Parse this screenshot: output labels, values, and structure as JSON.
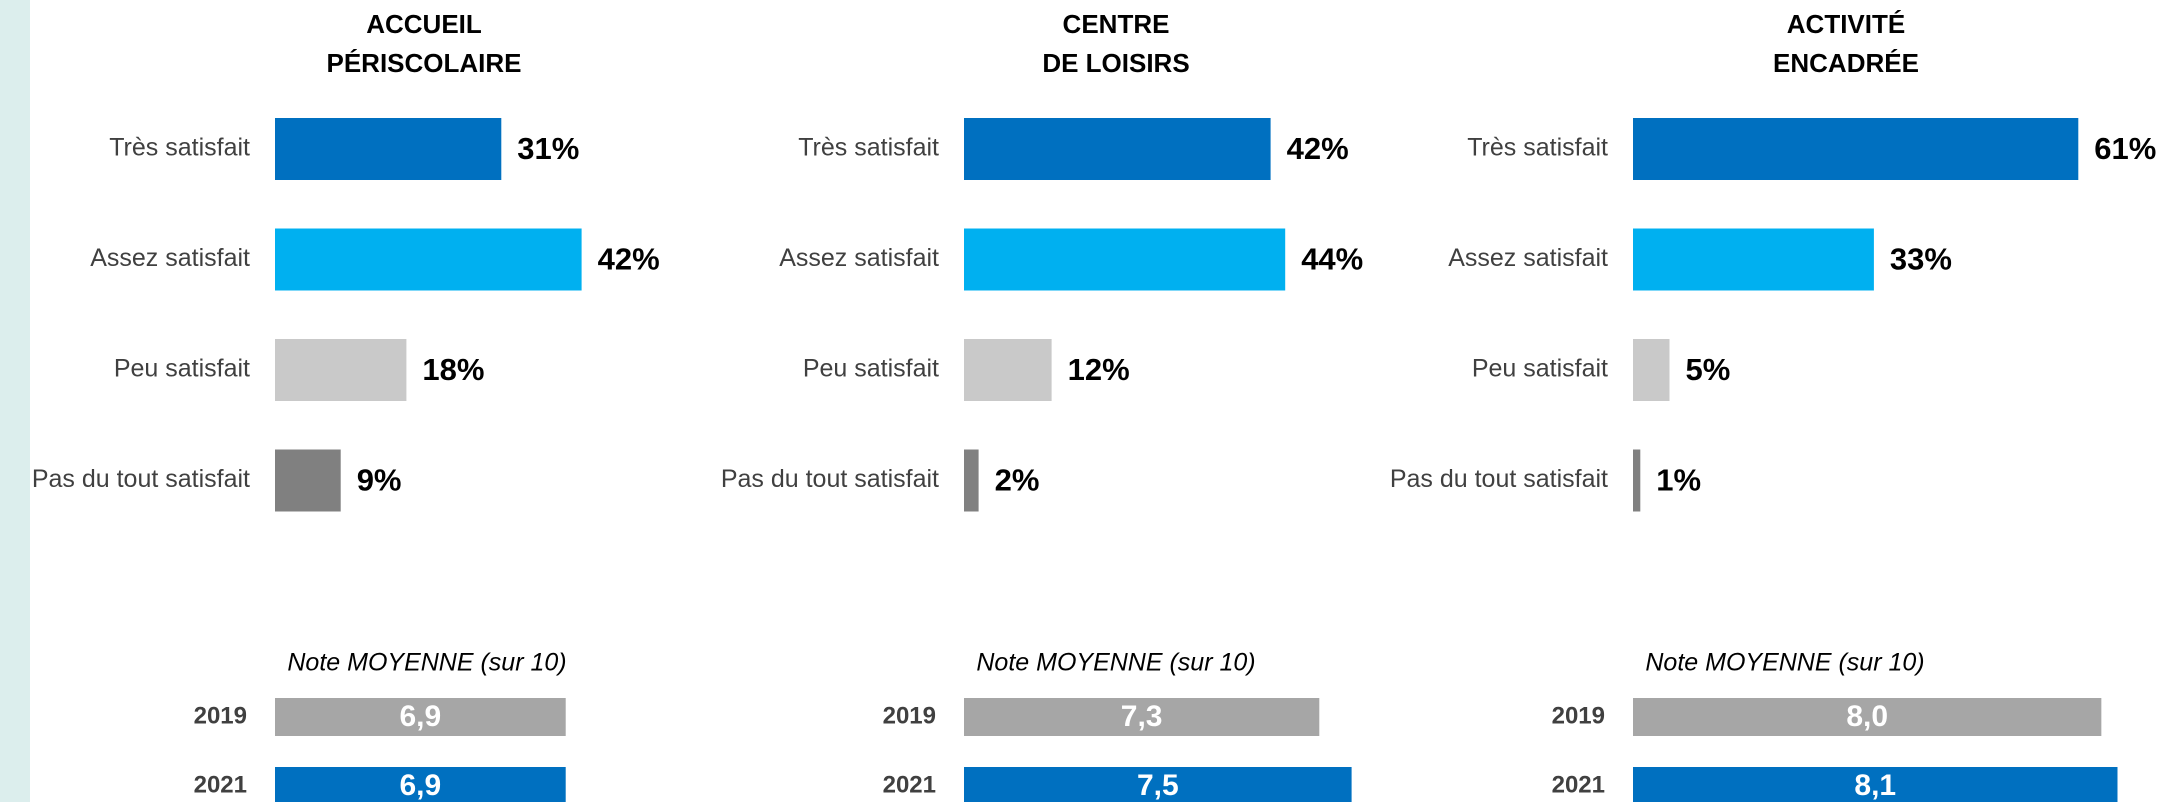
{
  "chart_data": [
    {
      "type": "hbar",
      "title": [
        "ACCUEIL",
        "PÉRISCOLAIRE"
      ],
      "categories": [
        "Très satisfait",
        "Assez satisfait",
        "Peu satisfait",
        "Pas du tout satisfait"
      ],
      "values": [
        31,
        42,
        18,
        9
      ],
      "value_labels": [
        "31%",
        "42%",
        "18%",
        "9%"
      ],
      "colors": [
        "#0070c0",
        "#00b0f0",
        "#c9c9c9",
        "#808080"
      ]
    },
    {
      "type": "hbar",
      "title": [
        "CENTRE",
        "DE LOISIRS"
      ],
      "categories": [
        "Très satisfait",
        "Assez satisfait",
        "Peu satisfait",
        "Pas du tout satisfait"
      ],
      "values": [
        42,
        44,
        12,
        2
      ],
      "value_labels": [
        "42%",
        "44%",
        "12%",
        "2%"
      ],
      "colors": [
        "#0070c0",
        "#00b0f0",
        "#c9c9c9",
        "#808080"
      ]
    },
    {
      "type": "hbar",
      "title": [
        "ACTIVITÉ",
        "ENCADRÉE"
      ],
      "categories": [
        "Très satisfait",
        "Assez satisfait",
        "Peu satisfait",
        "Pas du tout satisfait"
      ],
      "values": [
        61,
        33,
        5,
        1
      ],
      "value_labels": [
        "61%",
        "33%",
        "5%",
        "1%"
      ],
      "colors": [
        "#0070c0",
        "#00b0f0",
        "#c9c9c9",
        "#808080"
      ]
    },
    {
      "type": "mean",
      "title": "Note MOYENNE (sur 10)",
      "categories": [
        "2019",
        "2021"
      ],
      "values": [
        6.9,
        6.9
      ],
      "value_labels": [
        "6,9",
        "6,9"
      ],
      "colors": [
        "#a6a6a6",
        "#0070c0"
      ]
    },
    {
      "type": "mean",
      "title": "Note MOYENNE (sur 10)",
      "categories": [
        "2019",
        "2021"
      ],
      "values": [
        7.3,
        7.5
      ],
      "value_labels": [
        "7,3",
        "7,5"
      ],
      "colors": [
        "#a6a6a6",
        "#0070c0"
      ]
    },
    {
      "type": "mean",
      "title": "Note MOYENNE (sur 10)",
      "categories": [
        "2019",
        "2021"
      ],
      "values": [
        8.0,
        8.1
      ],
      "value_labels": [
        "8,0",
        "8,1"
      ],
      "colors": [
        "#a6a6a6",
        "#0070c0"
      ]
    }
  ]
}
